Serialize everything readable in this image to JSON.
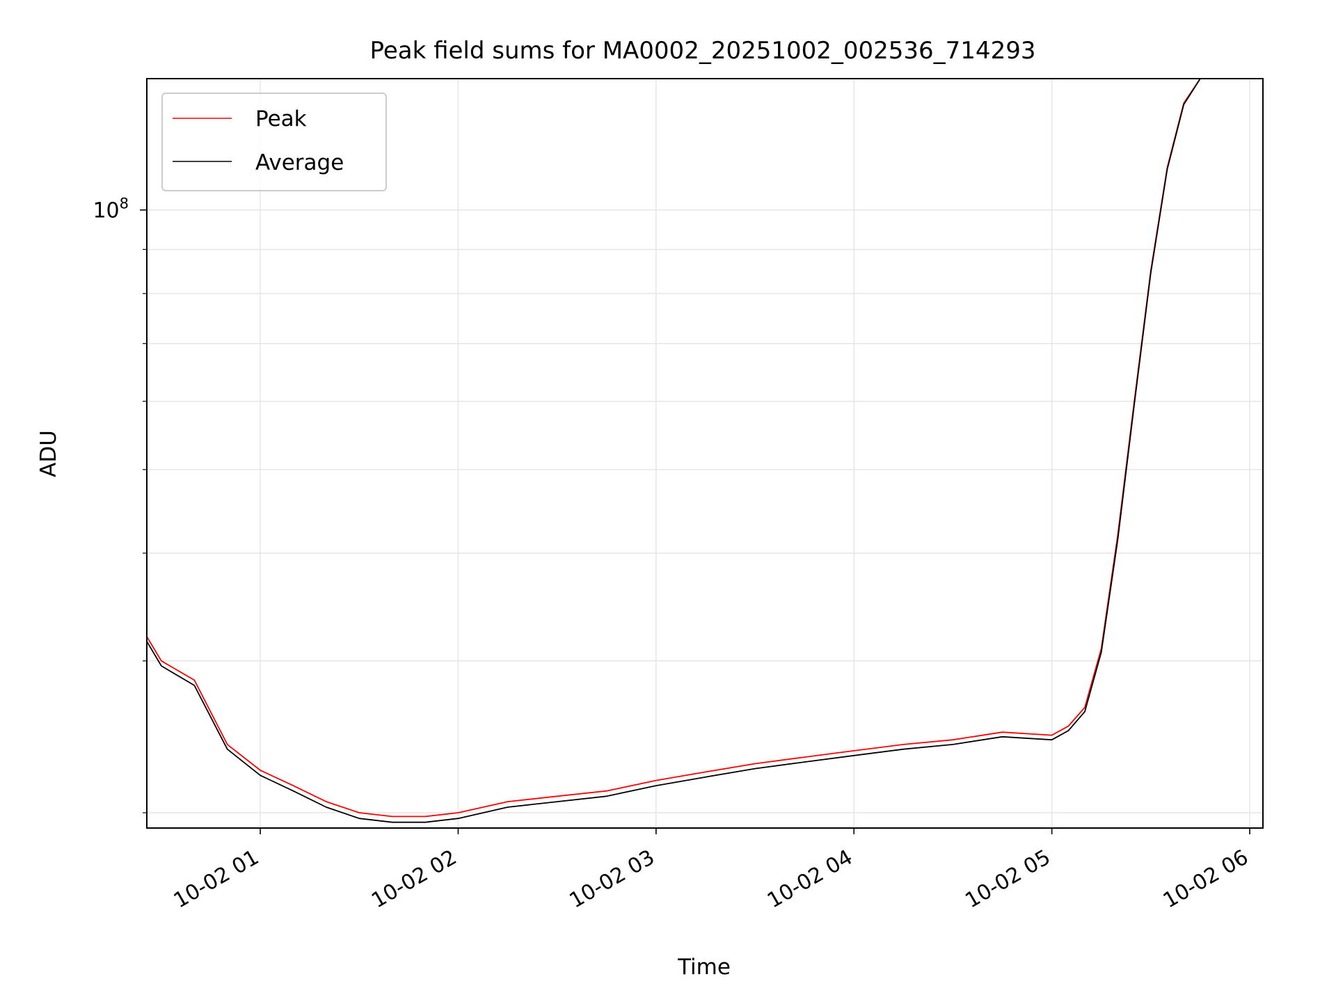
{
  "chart_data": {
    "type": "line",
    "title": "Peak field sums for MA0002_20251002_002536_714293",
    "xlabel": "Time",
    "ylabel": "ADU",
    "yscale": "log",
    "xlim": [
      "2025-10-02T00:25:36",
      "2025-10-02T06:04:00"
    ],
    "ylim": [
      19200000,
      142000000
    ],
    "x_ticks": [
      {
        "value": "2025-10-02T01:00:00",
        "label": "10-02 01"
      },
      {
        "value": "2025-10-02T02:00:00",
        "label": "10-02 02"
      },
      {
        "value": "2025-10-02T03:00:00",
        "label": "10-02 03"
      },
      {
        "value": "2025-10-02T04:00:00",
        "label": "10-02 04"
      },
      {
        "value": "2025-10-02T05:00:00",
        "label": "10-02 05"
      },
      {
        "value": "2025-10-02T06:00:00",
        "label": "10-02 06"
      }
    ],
    "y_major_ticks": [
      {
        "value": 100000000,
        "base": "10",
        "exponent": "8"
      }
    ],
    "y_minor_ticks": [
      20000000,
      30000000,
      40000000,
      50000000,
      60000000,
      70000000,
      80000000,
      90000000,
      200000000
    ],
    "grid": true,
    "legend": {
      "placement": "upper left"
    },
    "series": [
      {
        "name": "Peak",
        "color": "#ff0000",
        "x": [
          "2025-10-02T00:25:36",
          "2025-10-02T00:30:00",
          "2025-10-02T00:40:00",
          "2025-10-02T00:50:00",
          "2025-10-02T01:00:00",
          "2025-10-02T01:10:00",
          "2025-10-02T01:20:00",
          "2025-10-02T01:30:00",
          "2025-10-02T01:40:00",
          "2025-10-02T01:50:00",
          "2025-10-02T02:00:00",
          "2025-10-02T02:15:00",
          "2025-10-02T02:30:00",
          "2025-10-02T02:45:00",
          "2025-10-02T03:00:00",
          "2025-10-02T03:15:00",
          "2025-10-02T03:30:00",
          "2025-10-02T03:45:00",
          "2025-10-02T04:00:00",
          "2025-10-02T04:15:00",
          "2025-10-02T04:30:00",
          "2025-10-02T04:45:00",
          "2025-10-02T05:00:00",
          "2025-10-02T05:05:00",
          "2025-10-02T05:10:00",
          "2025-10-02T05:15:00",
          "2025-10-02T05:20:00",
          "2025-10-02T05:25:00",
          "2025-10-02T05:30:00",
          "2025-10-02T05:35:00",
          "2025-10-02T05:40:00",
          "2025-10-02T05:45:00"
        ],
        "values": [
          32000000,
          30000000,
          28500000,
          24000000,
          22400000,
          21500000,
          20600000,
          20000000,
          19800000,
          19800000,
          20000000,
          20600000,
          20900000,
          21200000,
          21800000,
          22300000,
          22800000,
          23200000,
          23600000,
          24000000,
          24300000,
          24800000,
          24600000,
          25200000,
          26500000,
          31000000,
          42000000,
          60000000,
          85000000,
          112000000,
          133000000,
          142000000
        ]
      },
      {
        "name": "Average",
        "color": "#000000",
        "x": [
          "2025-10-02T00:25:36",
          "2025-10-02T00:30:00",
          "2025-10-02T00:40:00",
          "2025-10-02T00:50:00",
          "2025-10-02T01:00:00",
          "2025-10-02T01:10:00",
          "2025-10-02T01:20:00",
          "2025-10-02T01:30:00",
          "2025-10-02T01:40:00",
          "2025-10-02T01:50:00",
          "2025-10-02T02:00:00",
          "2025-10-02T02:15:00",
          "2025-10-02T02:30:00",
          "2025-10-02T02:45:00",
          "2025-10-02T03:00:00",
          "2025-10-02T03:15:00",
          "2025-10-02T03:30:00",
          "2025-10-02T03:45:00",
          "2025-10-02T04:00:00",
          "2025-10-02T04:15:00",
          "2025-10-02T04:30:00",
          "2025-10-02T04:45:00",
          "2025-10-02T05:00:00",
          "2025-10-02T05:05:00",
          "2025-10-02T05:10:00",
          "2025-10-02T05:15:00",
          "2025-10-02T05:20:00",
          "2025-10-02T05:25:00",
          "2025-10-02T05:30:00",
          "2025-10-02T05:35:00",
          "2025-10-02T05:40:00",
          "2025-10-02T05:45:00"
        ],
        "values": [
          31600000,
          29600000,
          28100000,
          23700000,
          22100000,
          21200000,
          20300000,
          19700000,
          19500000,
          19500000,
          19700000,
          20300000,
          20600000,
          20900000,
          21500000,
          22000000,
          22500000,
          22900000,
          23300000,
          23700000,
          24000000,
          24500000,
          24300000,
          24900000,
          26200000,
          30700000,
          41500000,
          59500000,
          84500000,
          111500000,
          132500000,
          142000000
        ]
      }
    ]
  }
}
